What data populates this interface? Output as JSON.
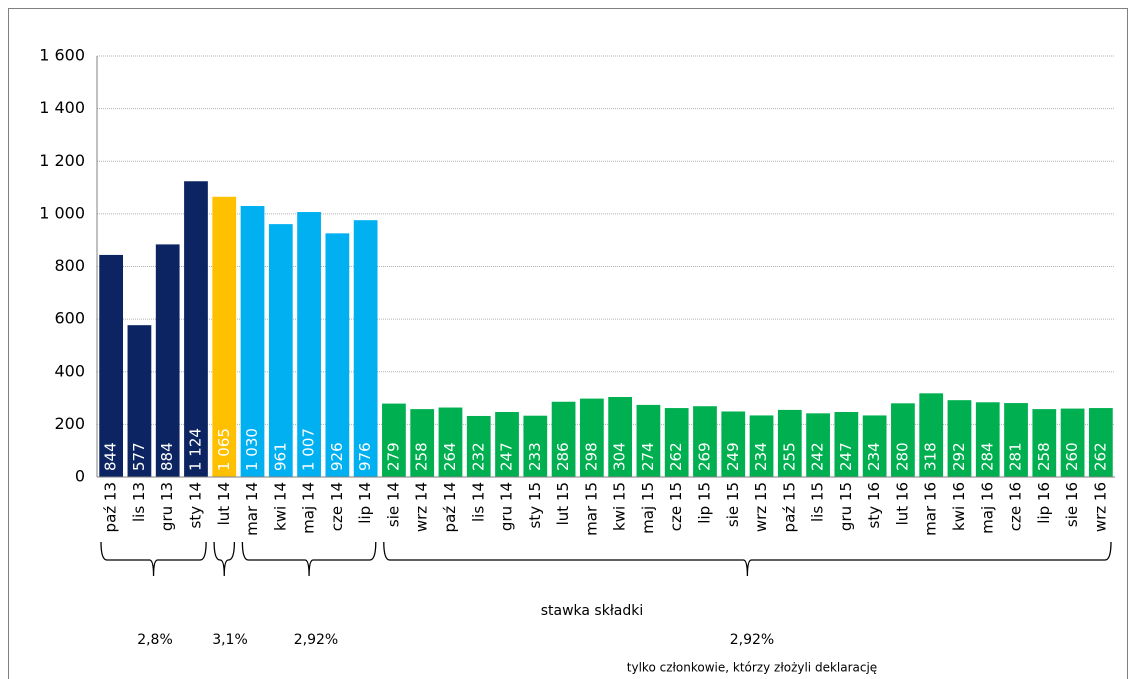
{
  "chart_data": {
    "type": "bar",
    "categories": [
      "paź 13",
      "lis 13",
      "gru 13",
      "sty 14",
      "lut 14",
      "mar 14",
      "kwi 14",
      "maj 14",
      "cze 14",
      "lip 14",
      "sie 14",
      "wrz 14",
      "paź 14",
      "lis 14",
      "gru 14",
      "sty 15",
      "lut 15",
      "mar 15",
      "kwi 15",
      "maj 15",
      "cze 15",
      "lip 15",
      "sie 15",
      "wrz 15",
      "paź 15",
      "lis 15",
      "gru 15",
      "sty 16",
      "lut 16",
      "mar 16",
      "kwi 16",
      "maj 16",
      "cze 16",
      "lip 16",
      "sie 16",
      "wrz 16"
    ],
    "values": [
      844,
      577,
      884,
      1124,
      1065,
      1030,
      961,
      1007,
      926,
      976,
      279,
      258,
      264,
      232,
      247,
      233,
      286,
      298,
      304,
      274,
      262,
      269,
      249,
      234,
      255,
      242,
      247,
      234,
      280,
      318,
      292,
      284,
      281,
      258,
      260,
      262
    ],
    "value_labels": [
      "844",
      "577",
      "884",
      "1 124",
      "1 065",
      "1 030",
      "961",
      "1 007",
      "926",
      "976",
      "279",
      "258",
      "264",
      "232",
      "247",
      "233",
      "286",
      "298",
      "304",
      "274",
      "262",
      "269",
      "249",
      "234",
      "255",
      "242",
      "247",
      "234",
      "280",
      "318",
      "292",
      "284",
      "281",
      "258",
      "260",
      "262"
    ],
    "colors": [
      "#0c2461",
      "#0c2461",
      "#0c2461",
      "#0c2461",
      "#ffc000",
      "#00b0f0",
      "#00b0f0",
      "#00b0f0",
      "#00b0f0",
      "#00b0f0",
      "#00b050",
      "#00b050",
      "#00b050",
      "#00b050",
      "#00b050",
      "#00b050",
      "#00b050",
      "#00b050",
      "#00b050",
      "#00b050",
      "#00b050",
      "#00b050",
      "#00b050",
      "#00b050",
      "#00b050",
      "#00b050",
      "#00b050",
      "#00b050",
      "#00b050",
      "#00b050",
      "#00b050",
      "#00b050",
      "#00b050",
      "#00b050",
      "#00b050",
      "#00b050"
    ],
    "ylim": [
      0,
      1600
    ],
    "yticks": [
      0,
      200,
      400,
      600,
      800,
      {
        "value": 1000,
        "label": "1 000"
      },
      {
        "value": 1200,
        "label": "1 200"
      },
      {
        "value": 1400,
        "label": "1 400"
      },
      {
        "value": 1600,
        "label": "1 600"
      }
    ],
    "grid": true,
    "group_title": "stawka składki",
    "groups": [
      "2,8%",
      "3,1%",
      "2,92%",
      "2,92%"
    ],
    "group_note": "tylko członkowie, którzy złożyli deklarację"
  }
}
